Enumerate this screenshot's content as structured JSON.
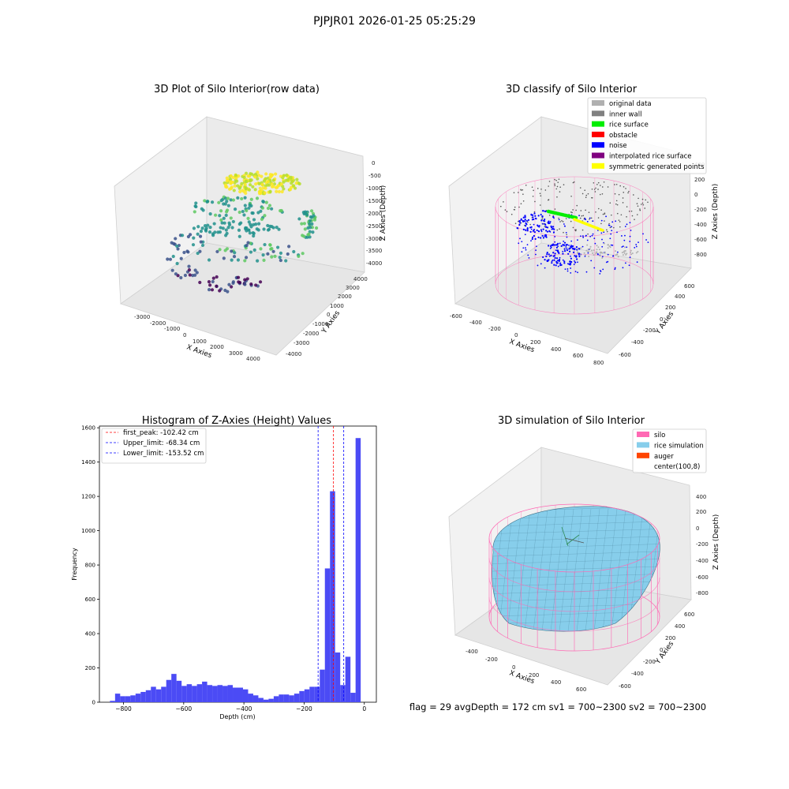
{
  "figure": {
    "suptitle": "PJPJR01 2026-01-25 05:25:29"
  },
  "panels": {
    "raw": {
      "title": "3D Plot of Silo Interior(row data)",
      "xlabel": "X Axies",
      "ylabel": "Y Axies",
      "zlabel": "Z Axies (Depth)",
      "xticks": [
        "-3000",
        "-2000",
        "-1000",
        "0",
        "1000",
        "2000",
        "3000",
        "4000"
      ],
      "yticks": [
        "-4000",
        "-3000",
        "-2000",
        "-1000",
        "0",
        "1000",
        "2000",
        "3000",
        "4000"
      ],
      "zticks": [
        "0",
        "-500",
        "-1000",
        "-1500",
        "-2000",
        "-2500",
        "-3000",
        "-3500",
        "-4000"
      ]
    },
    "classify": {
      "title": "3D classify of Silo Interior",
      "xlabel": "X Axies",
      "ylabel": "Y Axies",
      "zlabel": "Z Axies (Depth)",
      "xticks": [
        "-600",
        "-400",
        "-200",
        "0",
        "200",
        "400",
        "600",
        "800"
      ],
      "yticks": [
        "-600",
        "-400",
        "-200",
        "0",
        "200",
        "400",
        "600"
      ],
      "zticks": [
        "400",
        "200",
        "0",
        "-200",
        "-400",
        "-600",
        "-800"
      ],
      "legend": [
        {
          "label": "original data",
          "color": "#b0b0b0"
        },
        {
          "label": "inner wall",
          "color": "#808080"
        },
        {
          "label": "rice surface",
          "color": "#00ee00"
        },
        {
          "label": "obstacle",
          "color": "#ff0000"
        },
        {
          "label": "noise",
          "color": "#0000ff"
        },
        {
          "label": "interpolated rice surface",
          "color": "#800080"
        },
        {
          "label": "symmetric generated points",
          "color": "#ffff00"
        }
      ]
    },
    "simulation": {
      "title": "3D simulation of Silo Interior",
      "xlabel": "X Axies",
      "ylabel": "Y Axies",
      "zlabel": "Z Axies (Depth)",
      "xticks": [
        "-400",
        "-200",
        "0",
        "200",
        "400",
        "600"
      ],
      "yticks": [
        "-600",
        "-400",
        "-200",
        "0",
        "200",
        "400",
        "600"
      ],
      "zticks": [
        "400",
        "200",
        "0",
        "-200",
        "-400",
        "-600",
        "-800"
      ],
      "legend": [
        {
          "label": "silo",
          "color": "#ff69b4"
        },
        {
          "label": "rice simulation",
          "color": "#87ceeb"
        },
        {
          "label": "auger",
          "color": "#ff4500"
        },
        {
          "label": "center(100,8)",
          "color": ""
        }
      ],
      "status": "flag = 29  avgDepth = 172 cm  sv1 = 700~2300  sv2 = 700~2300"
    }
  },
  "colors": {
    "hist_bar": "#4b4bf5",
    "peak_line": "#ff0000",
    "limit_line": "#0000ff",
    "silo": "#ff69b4",
    "rice": "#87ceeb"
  },
  "chart_data": [
    {
      "type": "scatter",
      "title": "3D Plot of Silo Interior(row data)",
      "xlabel": "X Axies",
      "ylabel": "Y Axies",
      "zlabel": "Z Axies (Depth)",
      "xlim": [
        -3500,
        4500
      ],
      "ylim": [
        -4500,
        4500
      ],
      "zlim": [
        -4200,
        200
      ],
      "colormap": "viridis"
    },
    {
      "type": "scatter",
      "title": "3D classify of Silo Interior",
      "xlabel": "X Axies",
      "ylabel": "Y Axies",
      "zlabel": "Z Axies (Depth)",
      "xlim": [
        -650,
        800
      ],
      "ylim": [
        -650,
        650
      ],
      "zlim": [
        -900,
        400
      ],
      "legend_position": "top-right"
    },
    {
      "type": "histogram",
      "title": "Histogram of Z-Axies (Height) Values",
      "xlabel": "Depth (cm)",
      "ylabel": "Frequency",
      "xlim": [
        -880,
        40
      ],
      "ylim": [
        0,
        1610
      ],
      "xticks": [
        -800,
        -600,
        -400,
        -200,
        0
      ],
      "yticks": [
        0,
        200,
        400,
        600,
        800,
        1000,
        1200,
        1400,
        1600
      ],
      "bin_start": -845,
      "bin_width": 17,
      "values": [
        8,
        50,
        35,
        35,
        40,
        50,
        60,
        70,
        90,
        75,
        90,
        130,
        165,
        125,
        95,
        105,
        95,
        105,
        120,
        100,
        95,
        100,
        95,
        100,
        85,
        85,
        75,
        50,
        40,
        25,
        15,
        20,
        35,
        45,
        45,
        40,
        50,
        65,
        75,
        90,
        90,
        190,
        780,
        1230,
        290,
        100,
        265,
        55,
        1540
      ],
      "vlines": [
        {
          "label": "first_peak: -102.42 cm",
          "x": -102.42,
          "color": "#ff0000"
        },
        {
          "label": "Upper_limit: -68.34 cm",
          "x": -68.34,
          "color": "#0000ff"
        },
        {
          "label": "Lower_limit: -153.52 cm",
          "x": -153.52,
          "color": "#0000ff"
        }
      ],
      "legend_position": "top-left"
    },
    {
      "type": "surface",
      "title": "3D simulation of Silo Interior",
      "xlabel": "X Axies",
      "ylabel": "Y Axies",
      "zlabel": "Z Axies (Depth)",
      "xlim": [
        -550,
        700
      ],
      "ylim": [
        -650,
        650
      ],
      "zlim": [
        -900,
        450
      ],
      "legend_position": "top-right"
    }
  ]
}
